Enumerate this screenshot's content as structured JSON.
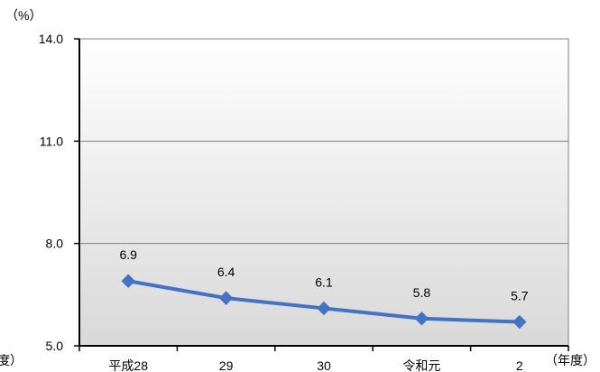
{
  "chart_data": {
    "type": "line",
    "categories": [
      "平成28",
      "29",
      "30",
      "令和元",
      "2"
    ],
    "series": [
      {
        "values": [
          6.9,
          6.4,
          6.1,
          5.8,
          5.7
        ]
      }
    ],
    "data_labels": [
      "6.9",
      "6.4",
      "6.1",
      "5.8",
      "5.7"
    ],
    "yticks": [
      "5.0",
      "8.0",
      "11.0",
      "14.0"
    ],
    "ylim": [
      5.0,
      14.0
    ],
    "y_unit": "（%）",
    "x_unit": "（年度）",
    "x_unit_left_fragment": "度）",
    "grid": true,
    "line_color": "#4472c4",
    "marker_color": "#4472c4",
    "plot_gradient": [
      "#ffffff",
      "#d9d9d9"
    ]
  }
}
